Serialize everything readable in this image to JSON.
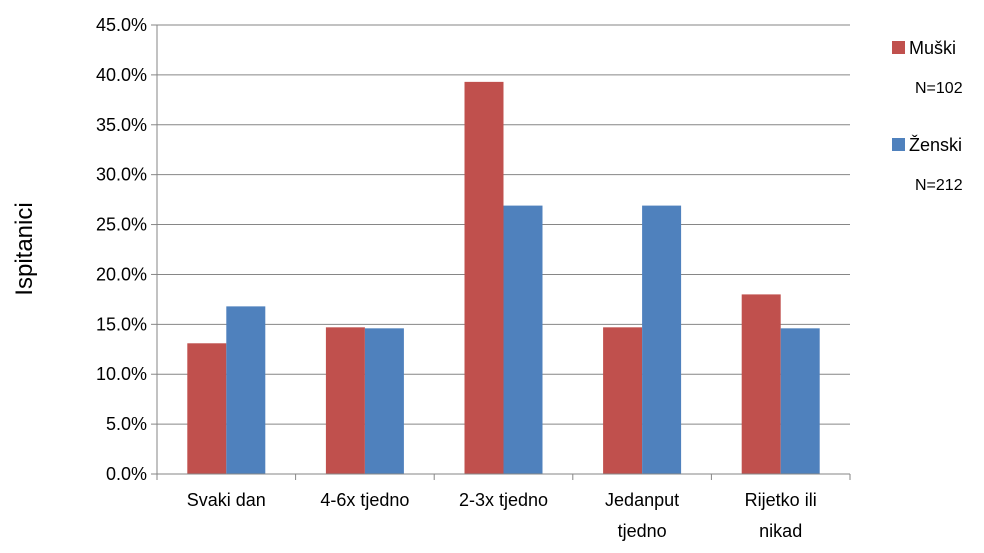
{
  "chart_data": {
    "type": "bar",
    "title": "",
    "xlabel": "",
    "ylabel": "Ispitanici",
    "ylim": [
      0,
      45
    ],
    "y_ticks": [
      "0.0%",
      "5.0%",
      "10.0%",
      "15.0%",
      "20.0%",
      "25.0%",
      "30.0%",
      "35.0%",
      "40.0%",
      "45.0%"
    ],
    "categories": [
      [
        "Svaki dan"
      ],
      [
        "4-6x tjedno"
      ],
      [
        "2-3x tjedno"
      ],
      [
        "Jedanput",
        "tjedno"
      ],
      [
        "Rijetko ili",
        "nikad"
      ]
    ],
    "series": [
      {
        "name": "Muški",
        "n_label": "N=102",
        "color": "#C0504D",
        "values": [
          13.1,
          14.7,
          39.3,
          14.7,
          18.0
        ]
      },
      {
        "name": "Ženski",
        "n_label": "N=212",
        "color": "#4F81BD",
        "values": [
          16.8,
          14.6,
          26.9,
          26.9,
          14.6
        ]
      }
    ],
    "grid": true,
    "legend_position": "right"
  }
}
